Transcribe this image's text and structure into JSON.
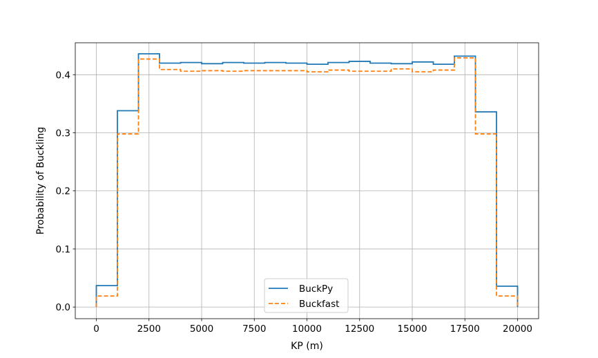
{
  "chart_data": {
    "type": "line",
    "step": "post",
    "title": "",
    "xlabel": "KP (m)",
    "ylabel": "Probability of Buckling",
    "xlim": [
      -1000,
      21000
    ],
    "ylim": [
      -0.02,
      0.455
    ],
    "grid": true,
    "legend_position": "lower center",
    "x_ticks": [
      0,
      2500,
      5000,
      7500,
      10000,
      12500,
      15000,
      17500,
      20000
    ],
    "x_tick_labels": [
      "0",
      "2500",
      "5000",
      "7500",
      "10000",
      "12500",
      "15000",
      "17500",
      "20000"
    ],
    "y_ticks": [
      0.0,
      0.1,
      0.2,
      0.3,
      0.4
    ],
    "y_tick_labels": [
      "0.0",
      "0.1",
      "0.2",
      "0.3",
      "0.4"
    ],
    "x_edges": [
      0,
      1000,
      2000,
      3000,
      4000,
      5000,
      6000,
      7000,
      8000,
      9000,
      10000,
      11000,
      12000,
      13000,
      14000,
      15000,
      16000,
      17000,
      18000,
      19000,
      20000
    ],
    "series": [
      {
        "name": "BuckPy",
        "color": "#1f77b4",
        "dash": "solid",
        "values": [
          0.037,
          0.338,
          0.436,
          0.42,
          0.421,
          0.419,
          0.421,
          0.42,
          0.421,
          0.42,
          0.418,
          0.421,
          0.423,
          0.42,
          0.419,
          0.422,
          0.418,
          0.432,
          0.336,
          0.036
        ]
      },
      {
        "name": "Buckfast",
        "color": "#ff7f0e",
        "dash": "dashed",
        "values": [
          0.019,
          0.298,
          0.427,
          0.409,
          0.406,
          0.407,
          0.406,
          0.407,
          0.407,
          0.407,
          0.405,
          0.408,
          0.406,
          0.406,
          0.41,
          0.405,
          0.408,
          0.429,
          0.298,
          0.019
        ]
      }
    ]
  }
}
